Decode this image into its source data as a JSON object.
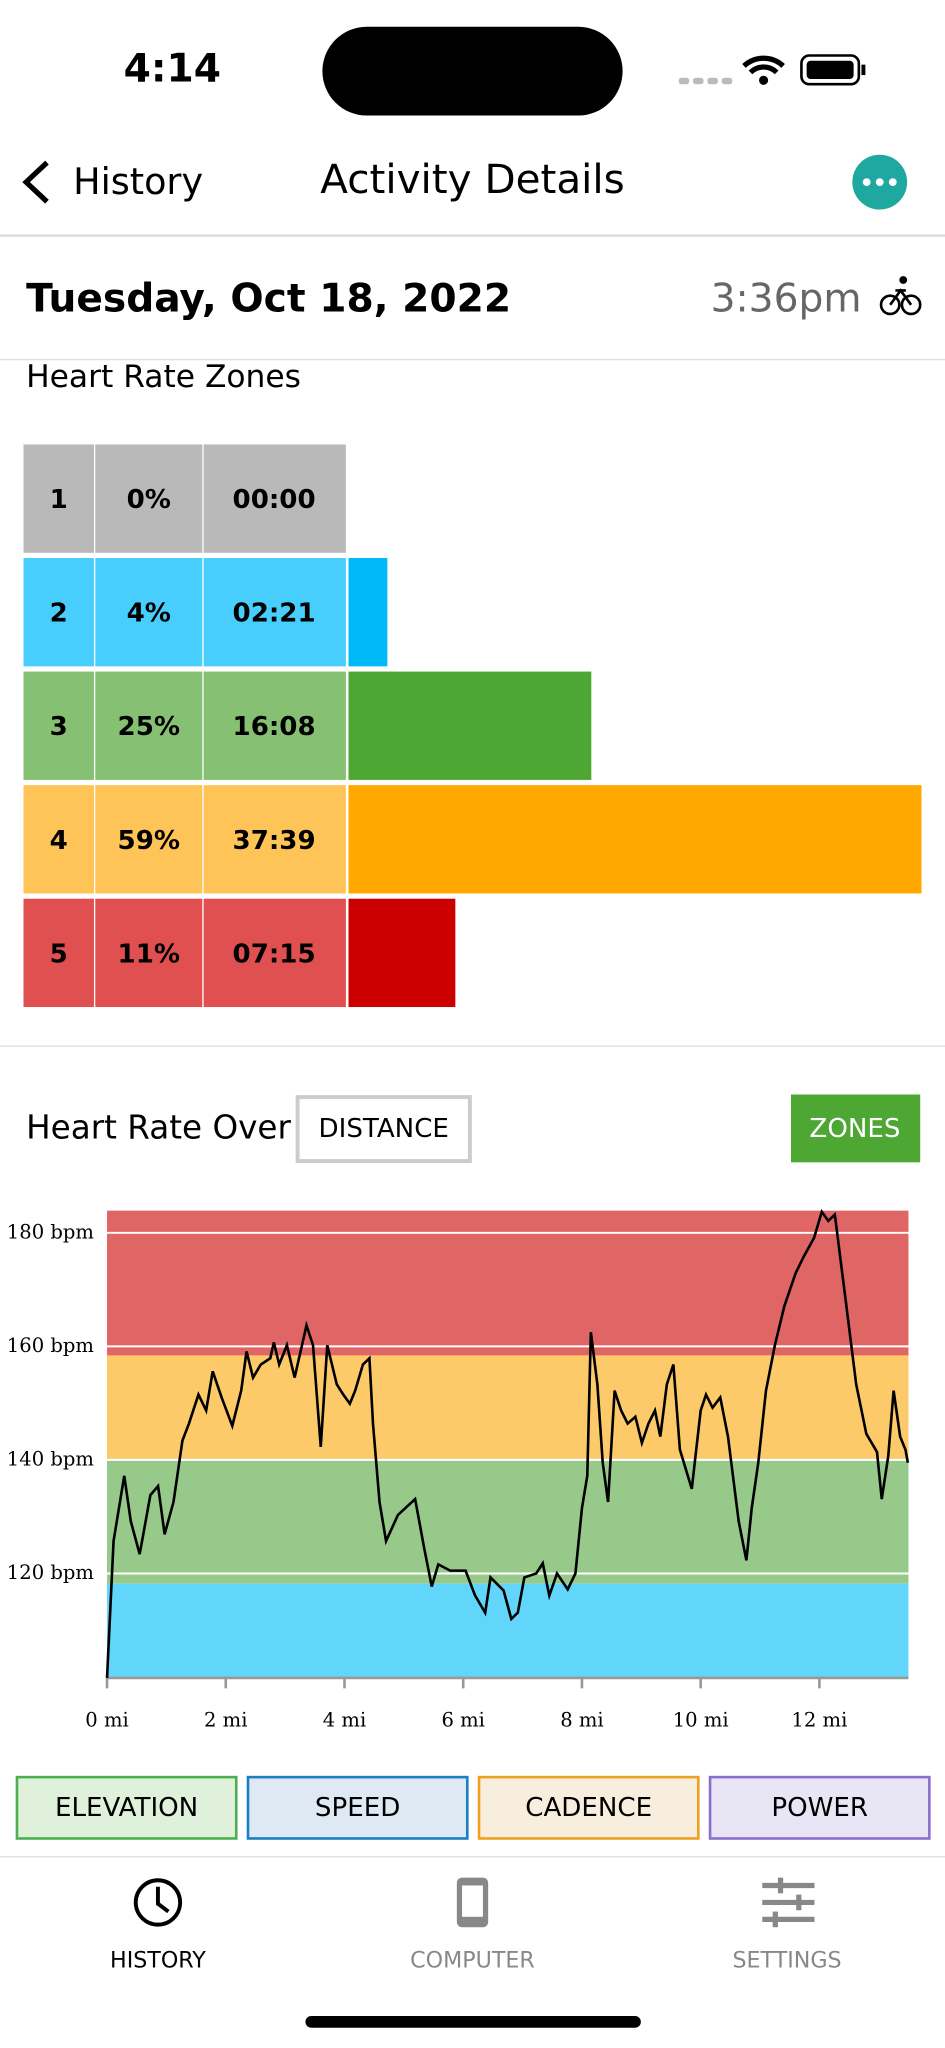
{
  "status_bar": {
    "time": "4:14"
  },
  "nav": {
    "back": "History",
    "title": "Activity Details"
  },
  "header": {
    "date": "Tuesday, Oct 18, 2022",
    "time": "3:36pm"
  },
  "zones": {
    "title": "Heart Rate Zones",
    "rows": [
      {
        "zone": "1",
        "percent": 0,
        "percent_label": "0%",
        "time": "00:00",
        "cell_color": "#b9b9b9",
        "bar_color": "#9e9e9e"
      },
      {
        "zone": "2",
        "percent": 4,
        "percent_label": "4%",
        "time": "02:21",
        "cell_color": "#48cefd",
        "bar_color": "#00b9f8"
      },
      {
        "zone": "3",
        "percent": 25,
        "percent_label": "25%",
        "time": "16:08",
        "cell_color": "#86c073",
        "bar_color": "#4ea733"
      },
      {
        "zone": "4",
        "percent": 59,
        "percent_label": "59%",
        "time": "37:39",
        "cell_color": "#ffc457",
        "bar_color": "#ffa800"
      },
      {
        "zone": "5",
        "percent": 11,
        "percent_label": "11%",
        "time": "07:15",
        "cell_color": "#e05050",
        "bar_color": "#cc0000"
      }
    ]
  },
  "chart_data": {
    "type": "line",
    "title": "Heart Rate Over",
    "x_toggle": "DISTANCE",
    "mode_button": "ZONES",
    "x": [
      0,
      0.11,
      0.29,
      0.4,
      0.55,
      0.73,
      0.86,
      0.97,
      1.12,
      1.27,
      1.38,
      1.54,
      1.67,
      1.78,
      1.93,
      2.11,
      2.26,
      2.35,
      2.46,
      2.59,
      2.75,
      2.81,
      2.9,
      3.03,
      3.16,
      3.36,
      3.47,
      3.6,
      3.71,
      3.87,
      3.98,
      4.09,
      4.18,
      4.31,
      4.42,
      4.48,
      4.59,
      4.7,
      4.9,
      5.19,
      5.34,
      5.47,
      5.58,
      5.78,
      6.04,
      6.2,
      6.37,
      6.46,
      6.68,
      6.81,
      6.92,
      7.03,
      7.23,
      7.34,
      7.45,
      7.58,
      7.76,
      7.89,
      8,
      8.09,
      8.15,
      8.26,
      8.35,
      8.44,
      8.55,
      8.66,
      8.77,
      8.9,
      9.01,
      9.12,
      9.23,
      9.32,
      9.43,
      9.54,
      9.65,
      9.85,
      10,
      10.09,
      10.2,
      10.33,
      10.46,
      10.64,
      10.77,
      10.86,
      10.97,
      11.1,
      11.25,
      11.41,
      11.6,
      11.74,
      11.91,
      12.04,
      12.15,
      12.26,
      12.44,
      12.62,
      12.79,
      12.97,
      13.05,
      13.16,
      13.25,
      13.36,
      13.45,
      13.49
    ],
    "series": [
      {
        "color": "#000000",
        "values": [
          101.6,
          125.7,
          137.2,
          129.2,
          123.4,
          133.8,
          135.4,
          126.9,
          132.6,
          143.4,
          146.4,
          151.5,
          148.7,
          155.6,
          151,
          146,
          152.2,
          159.1,
          154.5,
          156.8,
          157.9,
          160.7,
          156.8,
          160.2,
          154.5,
          163.7,
          160.2,
          142.3,
          160.2,
          153.3,
          151.5,
          149.9,
          152.2,
          156.8,
          157.9,
          146.4,
          132.6,
          125.7,
          130.3,
          133.1,
          124.6,
          117.7,
          121.6,
          120.5,
          120.5,
          116.1,
          113.1,
          119.3,
          117,
          112,
          113.1,
          119.3,
          120,
          121.8,
          116.1,
          120,
          117.2,
          120,
          131.5,
          137.2,
          162.5,
          153.3,
          139.5,
          132.6,
          152.2,
          148.7,
          146.4,
          147.6,
          143,
          146.4,
          148.7,
          144.1,
          153.3,
          156.8,
          141.8,
          134.9,
          148.7,
          151.5,
          149.2,
          151,
          144.1,
          129.2,
          122.3,
          131.5,
          139.5,
          152.2,
          160.2,
          167.1,
          172.9,
          175.9,
          179.1,
          183.7,
          182.1,
          183.2,
          168.3,
          153.3,
          144.6,
          141.4,
          133.1,
          140.7,
          152.2,
          144.1,
          141.8,
          139.5
        ]
      }
    ],
    "bands": [
      {
        "from": 158.4,
        "to": 183.9,
        "color": "#e06666"
      },
      {
        "from": 140.2,
        "to": 158.4,
        "color": "#fdca6a"
      },
      {
        "from": 118.2,
        "to": 140.2,
        "color": "#96c98a"
      },
      {
        "from": 101.6,
        "to": 118.2,
        "color": "#62d5fa"
      }
    ],
    "xlim": [
      0,
      13.5
    ],
    "ylim": [
      101.6,
      183.9
    ],
    "xticks": [
      {
        "value": 0,
        "label": "0 mi"
      },
      {
        "value": 2,
        "label": "2 mi"
      },
      {
        "value": 4,
        "label": "4 mi"
      },
      {
        "value": 6,
        "label": "6 mi"
      },
      {
        "value": 8,
        "label": "8 mi"
      },
      {
        "value": 10,
        "label": "10 mi"
      },
      {
        "value": 12,
        "label": "12 mi"
      }
    ],
    "yticks": [
      {
        "value": 120,
        "label": "120 bpm"
      },
      {
        "value": 140,
        "label": "140 bpm"
      },
      {
        "value": 160,
        "label": "160 bpm"
      },
      {
        "value": 180,
        "label": "180 bpm"
      }
    ],
    "grid": true
  },
  "metric_buttons": [
    "ELEVATION",
    "SPEED",
    "CADENCE",
    "POWER"
  ],
  "tab_bar": [
    "HISTORY",
    "COMPUTER",
    "SETTINGS"
  ]
}
